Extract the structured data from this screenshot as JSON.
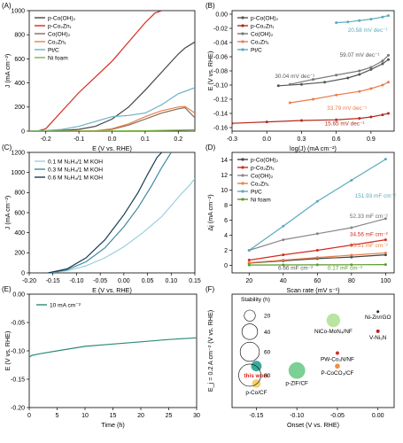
{
  "chart_data": [
    {
      "type": "line",
      "panel_label": "(A)",
      "xlabel": "E (V vs. RHE)",
      "ylabel": "J (mA cm⁻²)",
      "xlim": [
        -0.25,
        0.25
      ],
      "ylim": [
        0,
        1000
      ],
      "xticks": [
        "-0.2",
        "-0.1",
        "0.0",
        "0.1",
        "0.2"
      ],
      "yticks": [
        "0",
        "200",
        "400",
        "600",
        "800",
        "1000"
      ],
      "legend_position": "top-left",
      "series": [
        {
          "name": "p-Co(OH)₂",
          "color": "#444444",
          "x": [
            -0.25,
            -0.2,
            -0.15,
            -0.1,
            -0.05,
            0,
            0.05,
            0.1,
            0.15,
            0.18,
            0.2,
            0.22,
            0.25
          ],
          "y": [
            0,
            2,
            6,
            15,
            40,
            100,
            200,
            340,
            490,
            580,
            640,
            690,
            740
          ]
        },
        {
          "name": "p-Co₂Zn₁",
          "color": "#d62a1f",
          "x": [
            -0.225,
            -0.2,
            -0.15,
            -0.1,
            -0.05,
            0,
            0.05,
            0.1,
            0.13,
            0.15
          ],
          "y": [
            0,
            20,
            170,
            320,
            450,
            580,
            740,
            900,
            980,
            1000
          ]
        },
        {
          "name": "Co(OH)₂",
          "color": "#8a6a5a",
          "x": [
            -0.25,
            -0.15,
            -0.05,
            0,
            0.05,
            0.1,
            0.15,
            0.2,
            0.22,
            0.25
          ],
          "y": [
            0,
            0,
            2,
            15,
            50,
            100,
            150,
            185,
            195,
            110
          ]
        },
        {
          "name": "Co₂Zn₁",
          "color": "#e8804a",
          "x": [
            -0.25,
            -0.15,
            -0.05,
            0,
            0.05,
            0.1,
            0.15,
            0.2,
            0.22,
            0.25
          ],
          "y": [
            0,
            0,
            3,
            20,
            60,
            120,
            170,
            200,
            205,
            150
          ]
        },
        {
          "name": "Pt/C",
          "color": "#6ab0c8",
          "x": [
            -0.25,
            -0.2,
            -0.15,
            -0.1,
            -0.05,
            0,
            0.05,
            0.1,
            0.15,
            0.2,
            0.25
          ],
          "y": [
            0,
            5,
            15,
            40,
            80,
            120,
            130,
            150,
            220,
            310,
            360
          ]
        },
        {
          "name": "Ni foam",
          "color": "#7cb342",
          "x": [
            -0.25,
            -0.1,
            0,
            0.1,
            0.2,
            0.25
          ],
          "y": [
            0,
            0,
            2,
            4,
            8,
            12
          ]
        }
      ]
    },
    {
      "type": "line",
      "panel_label": "(B)",
      "xlabel": "log(J) (mA cm⁻²)",
      "ylabel": "E (V vs. RHE)",
      "xlim": [
        -0.3,
        1.1
      ],
      "ylim": [
        -0.165,
        0.005
      ],
      "xticks": [
        "-0.3",
        "0.0",
        "0.3",
        "0.6",
        "0.9"
      ],
      "yticks": [
        "-0.16",
        "-0.14",
        "-0.12",
        "-0.10",
        "-0.08",
        "-0.06",
        "-0.04",
        "-0.02",
        "0.00"
      ],
      "legend_position": "top-left",
      "series": [
        {
          "name": "p-Co(OH)₂",
          "color": "#555555",
          "x": [
            0.1,
            0.3,
            0.5,
            0.7,
            0.8,
            0.9,
            1.0,
            1.05
          ],
          "y": [
            -0.101,
            -0.099,
            -0.096,
            -0.09,
            -0.085,
            -0.078,
            -0.07,
            -0.064
          ]
        },
        {
          "name": "p-Co₂Zn₁",
          "color": "#b32a1c",
          "x": [
            -0.3,
            0,
            0.3,
            0.6,
            0.8,
            0.9,
            1.0,
            1.05
          ],
          "y": [
            -0.154,
            -0.152,
            -0.15,
            -0.149,
            -0.147,
            -0.145,
            -0.142,
            -0.14
          ]
        },
        {
          "name": "Co(OH)₂",
          "color": "#777777",
          "x": [
            0.2,
            0.4,
            0.6,
            0.8,
            0.9,
            1.0,
            1.05
          ],
          "y": [
            -0.099,
            -0.092,
            -0.086,
            -0.08,
            -0.075,
            -0.066,
            -0.058
          ]
        },
        {
          "name": "Co₂Zn₁",
          "color": "#ee7a4a",
          "x": [
            0.2,
            0.4,
            0.6,
            0.8,
            0.9,
            1.0,
            1.05
          ],
          "y": [
            -0.125,
            -0.12,
            -0.114,
            -0.109,
            -0.105,
            -0.1,
            -0.096
          ]
        },
        {
          "name": "Pt/C",
          "color": "#5aaac0",
          "x": [
            0.6,
            0.7,
            0.8,
            0.9,
            1.0,
            1.05
          ],
          "y": [
            -0.012,
            -0.011,
            -0.009,
            -0.007,
            -0.004,
            -0.002
          ]
        }
      ],
      "annotations": [
        {
          "text": "20.58 mV dec⁻¹",
          "color": "#5aaac0",
          "x": 0.7,
          "y": -0.025
        },
        {
          "text": "59.07 mV dec⁻¹",
          "color": "#555555",
          "x": 0.63,
          "y": -0.06
        },
        {
          "text": "30.04 mV dec⁻¹",
          "color": "#555555",
          "x": 0.07,
          "y": -0.09
        },
        {
          "text": "33.79 mV dec⁻¹",
          "color": "#ee7a4a",
          "x": 0.52,
          "y": -0.135
        },
        {
          "text": "15.65 mV dec⁻¹",
          "color": "#b32a1c",
          "x": 0.5,
          "y": -0.157
        }
      ]
    },
    {
      "type": "line",
      "panel_label": "(C)",
      "xlabel": "E (V vs. RHE)",
      "ylabel": "J (mA cm⁻²)",
      "xlim": [
        -0.2,
        0.15
      ],
      "ylim": [
        0,
        1200
      ],
      "xticks": [
        "-0.20",
        "-0.15",
        "-0.10",
        "-0.05",
        "0.00",
        "0.05",
        "0.10",
        "0.15"
      ],
      "yticks": [
        "0",
        "200",
        "400",
        "600",
        "800",
        "1000",
        "1200"
      ],
      "legend_position": "top-left",
      "series": [
        {
          "name": "0.1 M N₂H₄/1 M KOH",
          "color": "#9ccfdc",
          "x": [
            -0.16,
            -0.12,
            -0.08,
            -0.04,
            0,
            0.04,
            0.08,
            0.12,
            0.14,
            0.15
          ],
          "y": [
            0,
            20,
            70,
            150,
            260,
            400,
            560,
            780,
            880,
            940
          ]
        },
        {
          "name": "0.3 M N₂H₄/1 M KOH",
          "color": "#3e8a9e",
          "x": [
            -0.16,
            -0.12,
            -0.08,
            -0.04,
            0,
            0.03,
            0.06,
            0.08,
            0.1
          ],
          "y": [
            0,
            30,
            110,
            250,
            460,
            650,
            880,
            1050,
            1200
          ]
        },
        {
          "name": "0.6 M N₂H₄/1 M KOH",
          "color": "#1a3a50",
          "x": [
            -0.16,
            -0.12,
            -0.08,
            -0.04,
            0,
            0.03,
            0.05,
            0.07,
            0.08
          ],
          "y": [
            0,
            40,
            150,
            330,
            580,
            800,
            980,
            1150,
            1200
          ]
        }
      ]
    },
    {
      "type": "line",
      "panel_label": "(D)",
      "xlabel": "Scan rate (mV s⁻¹)",
      "ylabel": "Δj (mA cm⁻²)",
      "xlim": [
        10,
        105
      ],
      "ylim": [
        -1,
        15
      ],
      "xticks": [
        "20",
        "40",
        "60",
        "80",
        "100"
      ],
      "yticks": [
        "0",
        "2",
        "4",
        "6",
        "8",
        "10",
        "12",
        "14"
      ],
      "legend_position": "top-left",
      "series": [
        {
          "name": "p-Co(OH)₂",
          "color": "#444444",
          "x": [
            20,
            40,
            60,
            80,
            100
          ],
          "y": [
            0.3,
            0.6,
            0.9,
            1.1,
            1.4
          ]
        },
        {
          "name": "p-Co₂Zn₁",
          "color": "#d62a1f",
          "x": [
            20,
            40,
            60,
            80,
            100
          ],
          "y": [
            0.7,
            1.4,
            2.0,
            2.7,
            3.4
          ]
        },
        {
          "name": "Co(OH)₂",
          "color": "#888888",
          "x": [
            20,
            40,
            60,
            80,
            100
          ],
          "y": [
            2.0,
            3.4,
            4.2,
            5.0,
            6.2
          ]
        },
        {
          "name": "Co₂Zn₁",
          "color": "#e8804a",
          "x": [
            20,
            40,
            60,
            80,
            100
          ],
          "y": [
            0.35,
            0.7,
            1.05,
            1.35,
            1.65
          ]
        },
        {
          "name": "Pt/C",
          "color": "#5aaac0",
          "x": [
            20,
            40,
            60,
            80,
            100
          ],
          "y": [
            2.0,
            5.2,
            8.5,
            11.3,
            14.1
          ]
        },
        {
          "name": "Ni foam",
          "color": "#5a9a2a",
          "x": [
            20,
            40,
            60,
            80,
            100
          ],
          "y": [
            0.05,
            0.06,
            0.07,
            0.08,
            0.1
          ]
        }
      ],
      "annotations": [
        {
          "text": "151.93 mF cm⁻²",
          "color": "#5aaac0",
          "x": 82,
          "y": 9.0
        },
        {
          "text": "52.33 mF cm⁻²",
          "color": "#666666",
          "x": 79,
          "y": 6.3
        },
        {
          "text": "34.56 mF cm⁻²",
          "color": "#d62a1f",
          "x": 79,
          "y": 3.9
        },
        {
          "text": "15.51 mF cm⁻²",
          "color": "#e8804a",
          "x": 79,
          "y": 2.4
        },
        {
          "text": "6.66 mF cm⁻²",
          "color": "#555555",
          "x": 37,
          "y": -0.6
        },
        {
          "text": "0.17 mF cm⁻²",
          "color": "#5a9a2a",
          "x": 66,
          "y": -0.6
        }
      ]
    },
    {
      "type": "line",
      "panel_label": "(E)",
      "xlabel": "Time (h)",
      "ylabel": "E (V vs. RHE)",
      "xlim": [
        0,
        30
      ],
      "ylim": [
        -0.2,
        0.0
      ],
      "xticks": [
        "0",
        "5",
        "10",
        "15",
        "20",
        "25",
        "30"
      ],
      "yticks": [
        "-0.20",
        "-0.15",
        "-0.10",
        "-0.05",
        "0.00"
      ],
      "legend_position": "top-left",
      "series": [
        {
          "name": "10 mA cm⁻²",
          "color": "#2e8a78",
          "x": [
            0,
            0.5,
            2,
            5,
            10,
            15,
            20,
            25,
            30
          ],
          "y": [
            -0.111,
            -0.108,
            -0.105,
            -0.1,
            -0.092,
            -0.088,
            -0.084,
            -0.08,
            -0.077
          ]
        }
      ]
    },
    {
      "type": "scatter",
      "panel_label": "(F)",
      "xlabel": "Onset (V vs. RHE)",
      "ylabel": "E_j = 0.2 A cm⁻² (V vs. RHE)",
      "xlim": [
        -0.18,
        0.02
      ],
      "ylim": [
        -0.2,
        0.32
      ],
      "xticks": [
        "-0.15",
        "-0.10",
        "-0.05",
        "0.00"
      ],
      "legend_title": "Stability (h)",
      "legend_sizes": [
        20,
        40,
        60,
        80
      ],
      "points": [
        {
          "label": "this work",
          "label_color": "#e02020",
          "x": -0.15,
          "y": -0.01,
          "stability": 18,
          "color": "#3aaa9a"
        },
        {
          "label": "p-Co/CF",
          "label_color": "#000000",
          "x": -0.15,
          "y": -0.09,
          "stability": 12,
          "color": "#f2cf70"
        },
        {
          "label": "p-ZIF/CF",
          "label_color": "#000000",
          "x": -0.1,
          "y": -0.03,
          "stability": 45,
          "color": "#7ccf95"
        },
        {
          "label": "NiCo-MoN₄/NF",
          "label_color": "#000000",
          "x": -0.055,
          "y": 0.2,
          "stability": 30,
          "color": "#b8e6a0"
        },
        {
          "label": "PW-Co₃N/NF",
          "label_color": "#000000",
          "x": -0.05,
          "y": 0.05,
          "stability": 2,
          "color": "#d03030"
        },
        {
          "label": "P-CoCO₃/CF",
          "label_color": "#000000",
          "x": -0.05,
          "y": -0.01,
          "stability": 4,
          "color": "#f09040"
        },
        {
          "label": "Ni-Zn/rGO",
          "label_color": "#000000",
          "x": 0.0,
          "y": 0.24,
          "stability": 1,
          "color": "#222222"
        },
        {
          "label": "V-Ni₃N",
          "label_color": "#000000",
          "x": 0.0,
          "y": 0.15,
          "stability": 2,
          "color": "#c02020"
        }
      ]
    }
  ]
}
